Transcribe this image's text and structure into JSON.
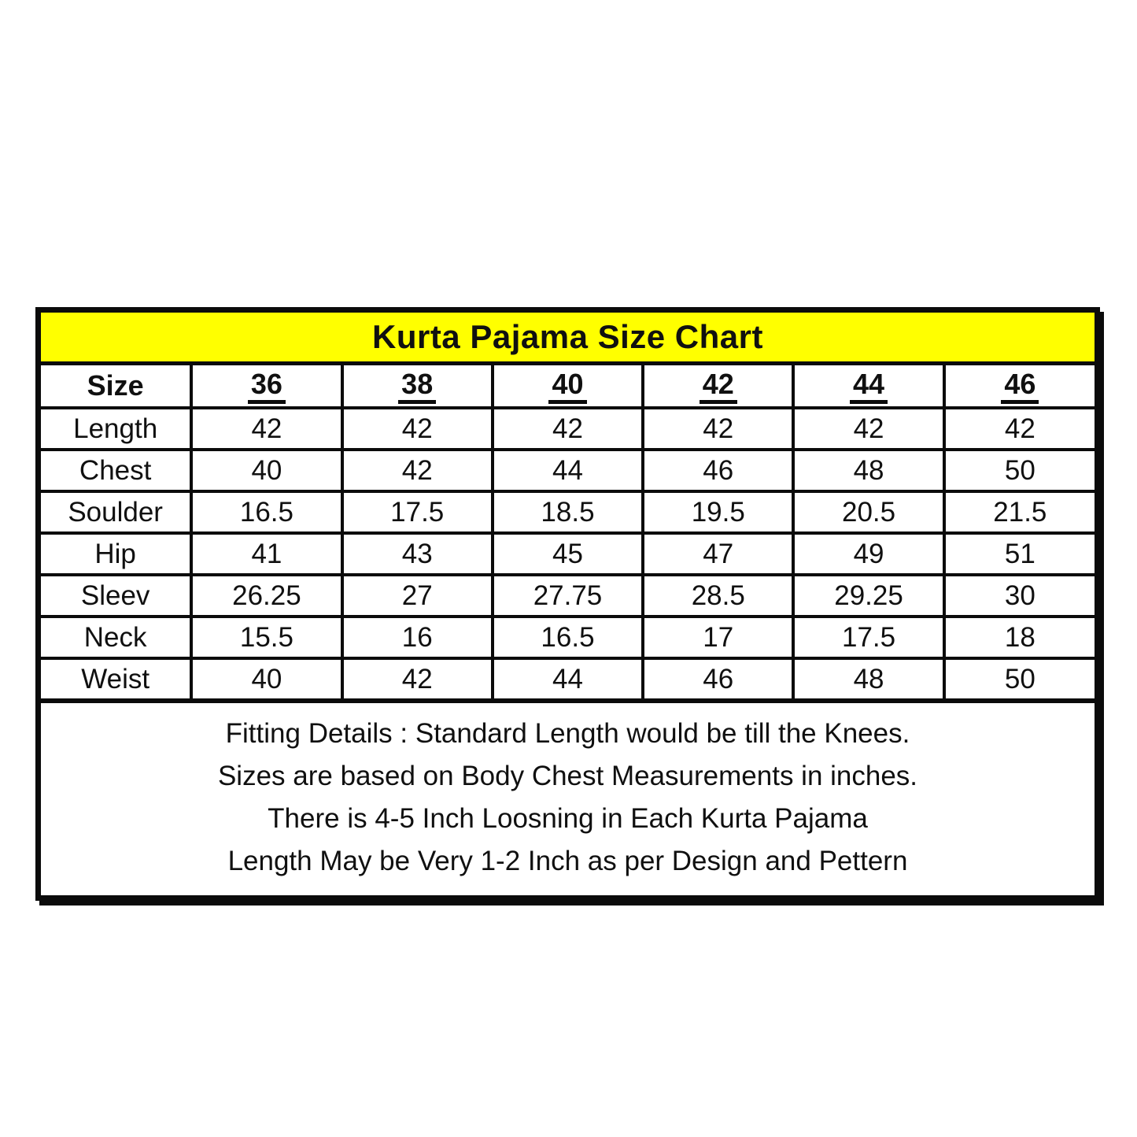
{
  "title": "Kurta Pajama Size Chart",
  "colors": {
    "title_bg": "#ffff00",
    "border": "#0b0b0b",
    "text": "#101010",
    "page_bg": "#ffffff"
  },
  "table": {
    "header": {
      "label": "Size",
      "sizes": [
        "36",
        "38",
        "40",
        "42",
        "44",
        "46"
      ]
    },
    "rows": [
      {
        "label": "Length",
        "values": [
          "42",
          "42",
          "42",
          "42",
          "42",
          "42"
        ]
      },
      {
        "label": "Chest",
        "values": [
          "40",
          "42",
          "44",
          "46",
          "48",
          "50"
        ]
      },
      {
        "label": "Soulder",
        "values": [
          "16.5",
          "17.5",
          "18.5",
          "19.5",
          "20.5",
          "21.5"
        ]
      },
      {
        "label": "Hip",
        "values": [
          "41",
          "43",
          "45",
          "47",
          "49",
          "51"
        ]
      },
      {
        "label": "Sleev",
        "values": [
          "26.25",
          "27",
          "27.75",
          "28.5",
          "29.25",
          "30"
        ]
      },
      {
        "label": "Neck",
        "values": [
          "15.5",
          "16",
          "16.5",
          "17",
          "17.5",
          "18"
        ]
      },
      {
        "label": "Weist",
        "values": [
          "40",
          "42",
          "44",
          "46",
          "48",
          "50"
        ]
      }
    ]
  },
  "footer": {
    "lines": [
      "Fitting Details : Standard Length would be till the Knees.",
      "Sizes are based on Body Chest Measurements in inches.",
      "There is 4-5 Inch Loosning in Each Kurta Pajama",
      "Length May be Very 1-2 Inch as per Design and Pettern"
    ]
  }
}
